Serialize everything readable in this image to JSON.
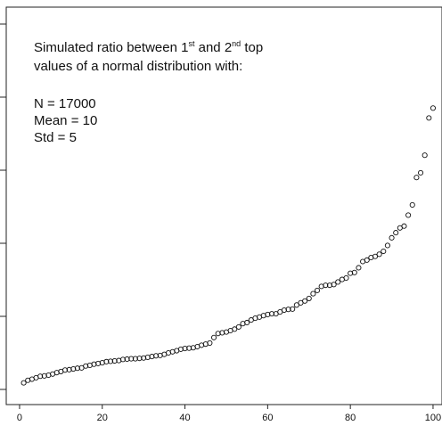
{
  "chart_data": {
    "type": "scatter",
    "title": "",
    "xlabel": "",
    "ylabel": "",
    "xlim": [
      -1,
      100
    ],
    "ylim": [
      0,
      1
    ],
    "x_ticks": [
      0,
      20,
      40,
      60,
      80,
      100
    ],
    "x_tick_labels": [
      "0",
      "20",
      "40",
      "60",
      "80",
      "100"
    ],
    "y_ticks": [
      0.0,
      0.2,
      0.4,
      0.6,
      0.8,
      1.0
    ],
    "y_tick_labels": [
      "",
      "",
      "",
      "",
      "",
      ""
    ],
    "marker": "open-circle",
    "series": [
      {
        "x": [
          1,
          2,
          3,
          4,
          5,
          6,
          7,
          8,
          9,
          10,
          11,
          12,
          13,
          14,
          15,
          16,
          17,
          18,
          19,
          20,
          21,
          22,
          23,
          24,
          25,
          26,
          27,
          28,
          29,
          30,
          31,
          32,
          33,
          34,
          35,
          36,
          37,
          38,
          39,
          40,
          41,
          42,
          43,
          44,
          45,
          46,
          47,
          48,
          49,
          50,
          51,
          52,
          53,
          54,
          55,
          56,
          57,
          58,
          59,
          60,
          61,
          62,
          63,
          64,
          65,
          66,
          67,
          68,
          69,
          70,
          71,
          72,
          73,
          74,
          75,
          76,
          77,
          78,
          79,
          80,
          81,
          82,
          83,
          84,
          85,
          86,
          87,
          88,
          89,
          90,
          91,
          92,
          93,
          94,
          95,
          96,
          97,
          98,
          99,
          100
        ],
        "y": [
          0.018,
          0.025,
          0.028,
          0.032,
          0.036,
          0.037,
          0.039,
          0.042,
          0.046,
          0.049,
          0.053,
          0.054,
          0.056,
          0.058,
          0.059,
          0.064,
          0.066,
          0.069,
          0.071,
          0.073,
          0.076,
          0.077,
          0.078,
          0.079,
          0.082,
          0.083,
          0.084,
          0.084,
          0.085,
          0.086,
          0.088,
          0.09,
          0.092,
          0.093,
          0.096,
          0.1,
          0.103,
          0.106,
          0.11,
          0.112,
          0.113,
          0.114,
          0.117,
          0.121,
          0.124,
          0.127,
          0.142,
          0.153,
          0.155,
          0.157,
          0.161,
          0.165,
          0.171,
          0.18,
          0.183,
          0.19,
          0.195,
          0.198,
          0.202,
          0.205,
          0.207,
          0.207,
          0.212,
          0.217,
          0.219,
          0.22,
          0.231,
          0.237,
          0.242,
          0.249,
          0.262,
          0.271,
          0.282,
          0.285,
          0.285,
          0.287,
          0.294,
          0.301,
          0.305,
          0.318,
          0.32,
          0.333,
          0.35,
          0.354,
          0.361,
          0.364,
          0.37,
          0.378,
          0.394,
          0.415,
          0.429,
          0.442,
          0.447,
          0.477,
          0.505,
          0.58,
          0.593,
          0.641,
          0.743,
          0.77
        ]
      }
    ],
    "annotation": {
      "line1_a": "Simulated ratio between 1",
      "line1_sup1": "st",
      "line1_b": " and 2",
      "line1_sup2": "nd",
      "line1_c": "  top",
      "line2": "values of a normal distribution with:",
      "line3": "N = 17000",
      "line4": "Mean = 10",
      "line5": "Std = 5"
    }
  }
}
